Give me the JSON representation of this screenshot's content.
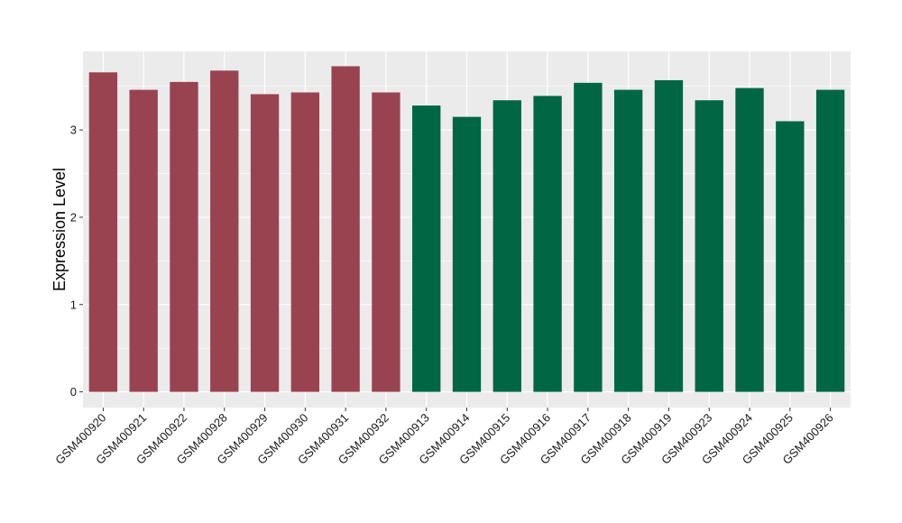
{
  "chart_data": {
    "type": "bar",
    "title": "",
    "xlabel": "",
    "ylabel": "Expression Level",
    "ylim": [
      -0.18,
      3.9
    ],
    "yticks": [
      0,
      1,
      2,
      3
    ],
    "grid": true,
    "categories": [
      "GSM400920",
      "GSM400921",
      "GSM400922",
      "GSM400928",
      "GSM400929",
      "GSM400930",
      "GSM400931",
      "GSM400932",
      "GSM400913",
      "GSM400914",
      "GSM400915",
      "GSM400916",
      "GSM400917",
      "GSM400918",
      "GSM400919",
      "GSM400923",
      "GSM400924",
      "GSM400925",
      "GSM400926"
    ],
    "values": [
      3.66,
      3.46,
      3.55,
      3.68,
      3.41,
      3.43,
      3.73,
      3.43,
      3.28,
      3.15,
      3.34,
      3.39,
      3.54,
      3.46,
      3.57,
      3.34,
      3.48,
      3.1,
      3.46
    ],
    "groups": [
      0,
      0,
      0,
      0,
      0,
      0,
      0,
      0,
      1,
      1,
      1,
      1,
      1,
      1,
      1,
      1,
      1,
      1,
      1
    ],
    "group_colors": [
      "#9a4350",
      "#006644"
    ],
    "panel_color": "#ebebeb",
    "grid_color": "#ffffff"
  }
}
